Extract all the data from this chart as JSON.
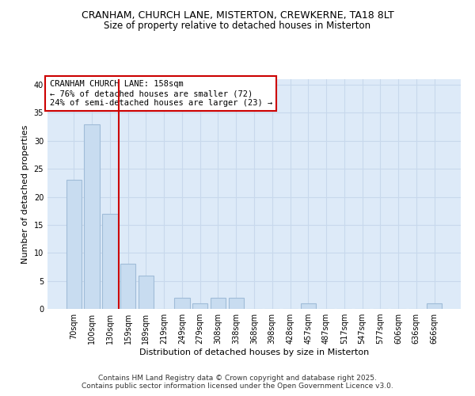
{
  "title": "CRANHAM, CHURCH LANE, MISTERTON, CREWKERNE, TA18 8LT",
  "subtitle": "Size of property relative to detached houses in Misterton",
  "xlabel": "Distribution of detached houses by size in Misterton",
  "ylabel": "Number of detached properties",
  "categories": [
    "70sqm",
    "100sqm",
    "130sqm",
    "159sqm",
    "189sqm",
    "219sqm",
    "249sqm",
    "279sqm",
    "308sqm",
    "338sqm",
    "368sqm",
    "398sqm",
    "428sqm",
    "457sqm",
    "487sqm",
    "517sqm",
    "547sqm",
    "577sqm",
    "606sqm",
    "636sqm",
    "666sqm"
  ],
  "values": [
    23,
    33,
    17,
    8,
    6,
    0,
    2,
    1,
    2,
    2,
    0,
    0,
    0,
    1,
    0,
    0,
    0,
    0,
    0,
    0,
    1
  ],
  "bar_color": "#c8dcf0",
  "bar_edge_color": "#a0bcd8",
  "vline_x": 2.5,
  "vline_color": "#cc0000",
  "annotation_text": "CRANHAM CHURCH LANE: 158sqm\n← 76% of detached houses are smaller (72)\n24% of semi-detached houses are larger (23) →",
  "annotation_box_color": "#cc0000",
  "ylim": [
    0,
    41
  ],
  "yticks": [
    0,
    5,
    10,
    15,
    20,
    25,
    30,
    35,
    40
  ],
  "grid_color": "#c8d8ec",
  "background_color": "#ddeaf8",
  "footer_text": "Contains HM Land Registry data © Crown copyright and database right 2025.\nContains public sector information licensed under the Open Government Licence v3.0.",
  "title_fontsize": 9,
  "subtitle_fontsize": 8.5,
  "axis_label_fontsize": 8,
  "tick_fontsize": 7,
  "annotation_fontsize": 7.5,
  "footer_fontsize": 6.5
}
